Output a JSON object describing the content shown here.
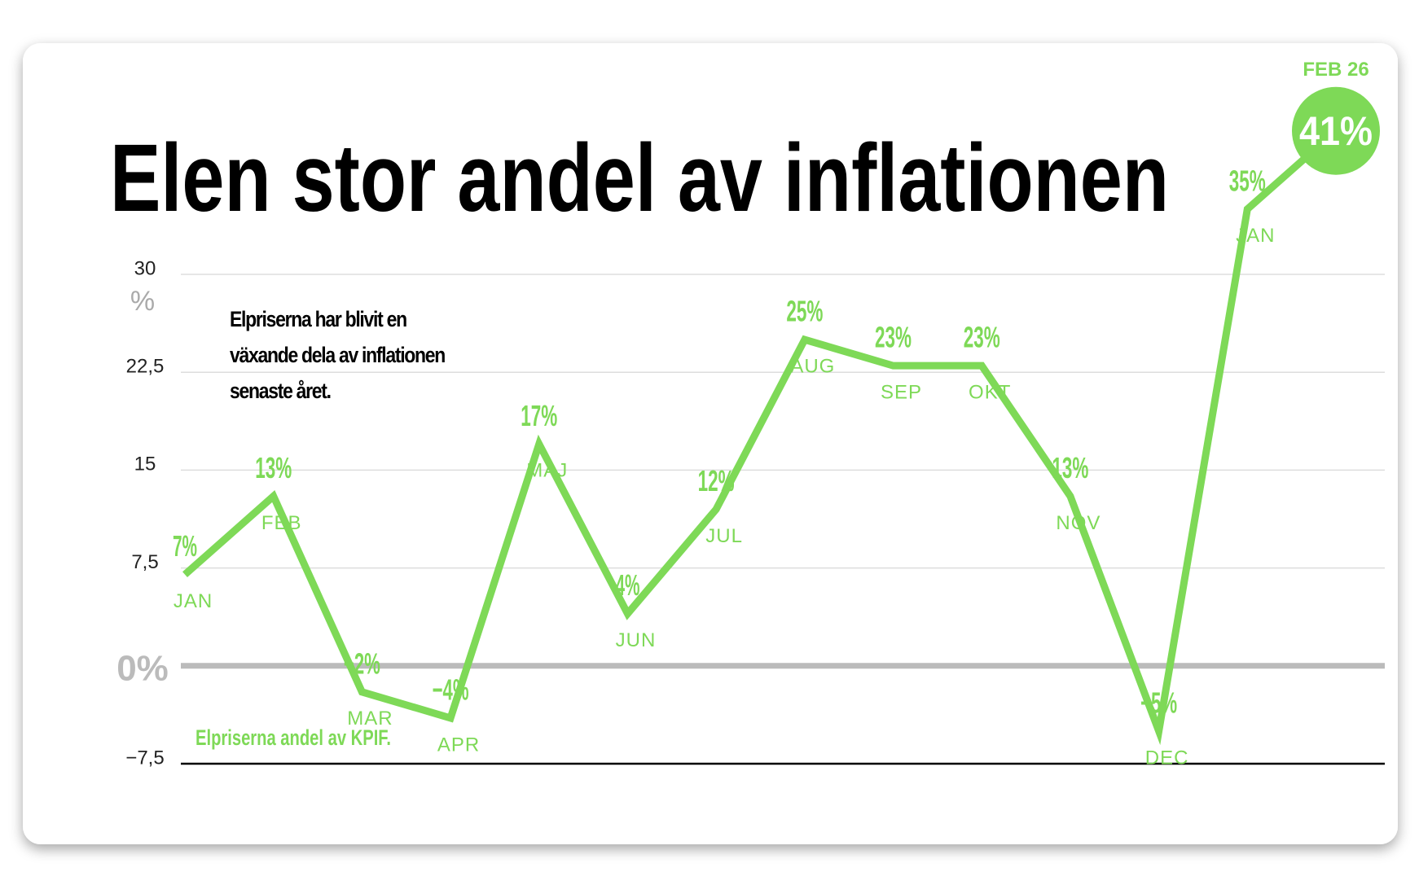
{
  "chart_data": {
    "type": "line",
    "title": "Elen stor andel av inflationen",
    "annotation": "Elpriserna har blivit en växande dela av inflationen senaste året.",
    "y_label": "%",
    "categories": [
      "JAN",
      "FEB",
      "MAR",
      "APR",
      "MAJ",
      "JUN",
      "JUL",
      "AUG",
      "SEP",
      "OKT",
      "NOV",
      "DEC",
      "JAN",
      "FEB 26"
    ],
    "series": [
      {
        "name": "Elpriserna andel av KPIF.",
        "color": "#7ed957",
        "values": [
          7,
          13,
          -2,
          -4,
          17,
          4,
          12,
          25,
          23,
          23,
          13,
          -5,
          35,
          41
        ],
        "value_labels": [
          "7%",
          "13%",
          "−2%",
          "−4%",
          "17%",
          "4%",
          "12%",
          "25%",
          "23%",
          "23%",
          "13%",
          "−5%",
          "35%",
          "41%"
        ]
      }
    ],
    "ylim": [
      -7.5,
      30
    ],
    "yticks": [
      {
        "value": -7.5,
        "label": "−7,5"
      },
      {
        "value": 0,
        "label": "0%"
      },
      {
        "value": 7.5,
        "label": "7,5"
      },
      15,
      {
        "value": 22.5,
        "label": "22,5"
      },
      30
    ],
    "grid": true
  }
}
